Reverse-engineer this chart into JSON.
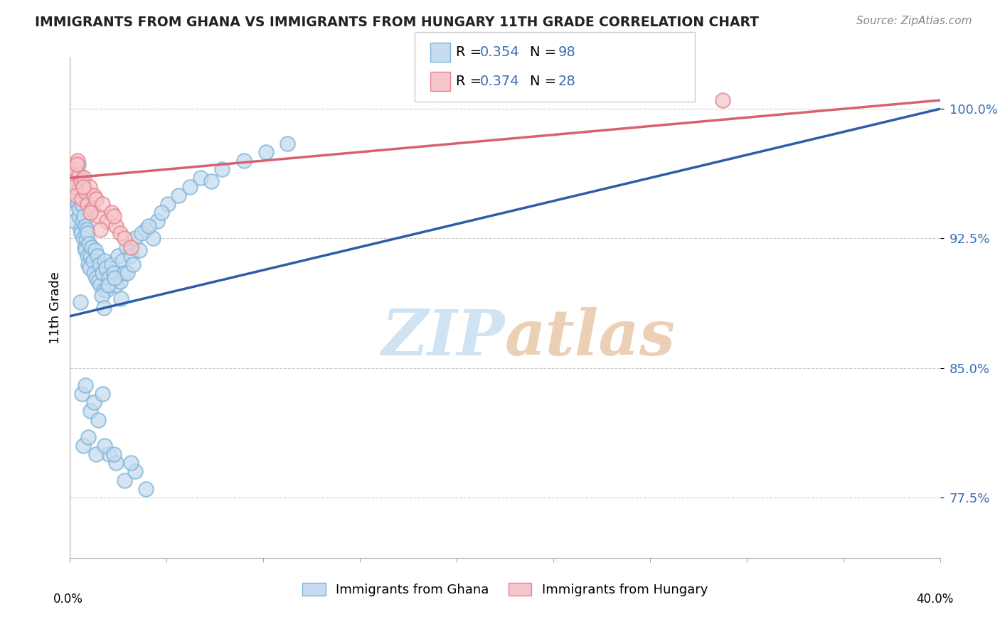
{
  "title": "IMMIGRANTS FROM GHANA VS IMMIGRANTS FROM HUNGARY 11TH GRADE CORRELATION CHART",
  "source": "Source: ZipAtlas.com",
  "ylabel": "11th Grade",
  "R_ghana": 0.354,
  "N_ghana": 98,
  "R_hungary": 0.374,
  "N_hungary": 28,
  "ghana_color": "#c6dcf0",
  "ghana_edge": "#7db4d8",
  "hungary_color": "#f5c6cb",
  "hungary_edge": "#e8838e",
  "ghana_line_color": "#2b5ea7",
  "hungary_line_color": "#d96070",
  "legend_ghana": "Immigrants from Ghana",
  "legend_hungary": "Immigrants from Hungary",
  "watermark_color": "#dceefa",
  "xlim": [
    0.0,
    40.0
  ],
  "ylim": [
    74.0,
    103.0
  ],
  "y_ticks": [
    77.5,
    85.0,
    92.5,
    100.0
  ],
  "y_tick_labels": [
    "77.5%",
    "85.0%",
    "92.5%",
    "100.0%"
  ],
  "title_color": "#222222",
  "source_color": "#888888",
  "tick_color": "#3a6fb5",
  "ghana_x": [
    0.15,
    0.18,
    0.2,
    0.22,
    0.25,
    0.28,
    0.3,
    0.32,
    0.35,
    0.38,
    0.4,
    0.42,
    0.45,
    0.48,
    0.5,
    0.52,
    0.55,
    0.58,
    0.6,
    0.62,
    0.65,
    0.68,
    0.7,
    0.72,
    0.75,
    0.78,
    0.8,
    0.82,
    0.85,
    0.88,
    0.9,
    0.95,
    1.0,
    1.05,
    1.1,
    1.15,
    1.2,
    1.25,
    1.3,
    1.35,
    1.4,
    1.5,
    1.55,
    1.6,
    1.65,
    1.7,
    1.8,
    1.9,
    2.0,
    2.1,
    2.2,
    2.3,
    2.4,
    2.5,
    2.6,
    2.8,
    3.0,
    3.2,
    3.5,
    3.8,
    4.0,
    4.5,
    5.0,
    5.5,
    6.0,
    6.5,
    7.0,
    8.0,
    9.0,
    10.0,
    1.45,
    1.55,
    1.75,
    2.05,
    2.35,
    2.65,
    2.9,
    3.3,
    3.6,
    4.2,
    0.48,
    0.55,
    0.72,
    0.95,
    1.1,
    1.3,
    1.5,
    1.8,
    2.1,
    2.5,
    3.0,
    3.5,
    0.6,
    0.85,
    1.2,
    1.6,
    2.0,
    2.8
  ],
  "ghana_y": [
    95.5,
    95.8,
    93.5,
    96.2,
    94.8,
    95.2,
    96.5,
    95.0,
    94.5,
    96.8,
    93.8,
    94.2,
    95.5,
    93.0,
    96.0,
    92.8,
    94.5,
    93.5,
    95.2,
    92.5,
    93.8,
    92.0,
    93.2,
    91.8,
    92.5,
    93.0,
    91.5,
    92.8,
    91.0,
    92.2,
    90.8,
    91.5,
    92.0,
    91.2,
    90.5,
    91.8,
    90.2,
    91.5,
    90.0,
    91.0,
    89.8,
    90.5,
    89.5,
    91.2,
    90.8,
    89.5,
    90.2,
    91.0,
    90.5,
    89.8,
    91.5,
    90.0,
    91.2,
    90.5,
    92.0,
    91.5,
    92.5,
    91.8,
    93.0,
    92.5,
    93.5,
    94.5,
    95.0,
    95.5,
    96.0,
    95.8,
    96.5,
    97.0,
    97.5,
    98.0,
    89.2,
    88.5,
    89.8,
    90.2,
    89.0,
    90.5,
    91.0,
    92.8,
    93.2,
    94.0,
    88.8,
    83.5,
    84.0,
    82.5,
    83.0,
    82.0,
    83.5,
    80.0,
    79.5,
    78.5,
    79.0,
    78.0,
    80.5,
    81.0,
    80.0,
    80.5,
    80.0,
    79.5
  ],
  "hungary_x": [
    0.15,
    0.2,
    0.28,
    0.35,
    0.4,
    0.5,
    0.55,
    0.65,
    0.7,
    0.8,
    0.9,
    1.0,
    1.1,
    1.2,
    1.3,
    1.5,
    1.7,
    1.9,
    2.1,
    2.3,
    2.5,
    0.3,
    0.6,
    0.95,
    1.4,
    2.0,
    2.8,
    30.0
  ],
  "hungary_y": [
    95.5,
    96.5,
    95.0,
    97.0,
    96.2,
    95.8,
    94.8,
    96.0,
    95.2,
    94.5,
    95.5,
    94.2,
    95.0,
    94.8,
    93.8,
    94.5,
    93.5,
    94.0,
    93.2,
    92.8,
    92.5,
    96.8,
    95.5,
    94.0,
    93.0,
    93.8,
    92.0,
    100.5
  ]
}
